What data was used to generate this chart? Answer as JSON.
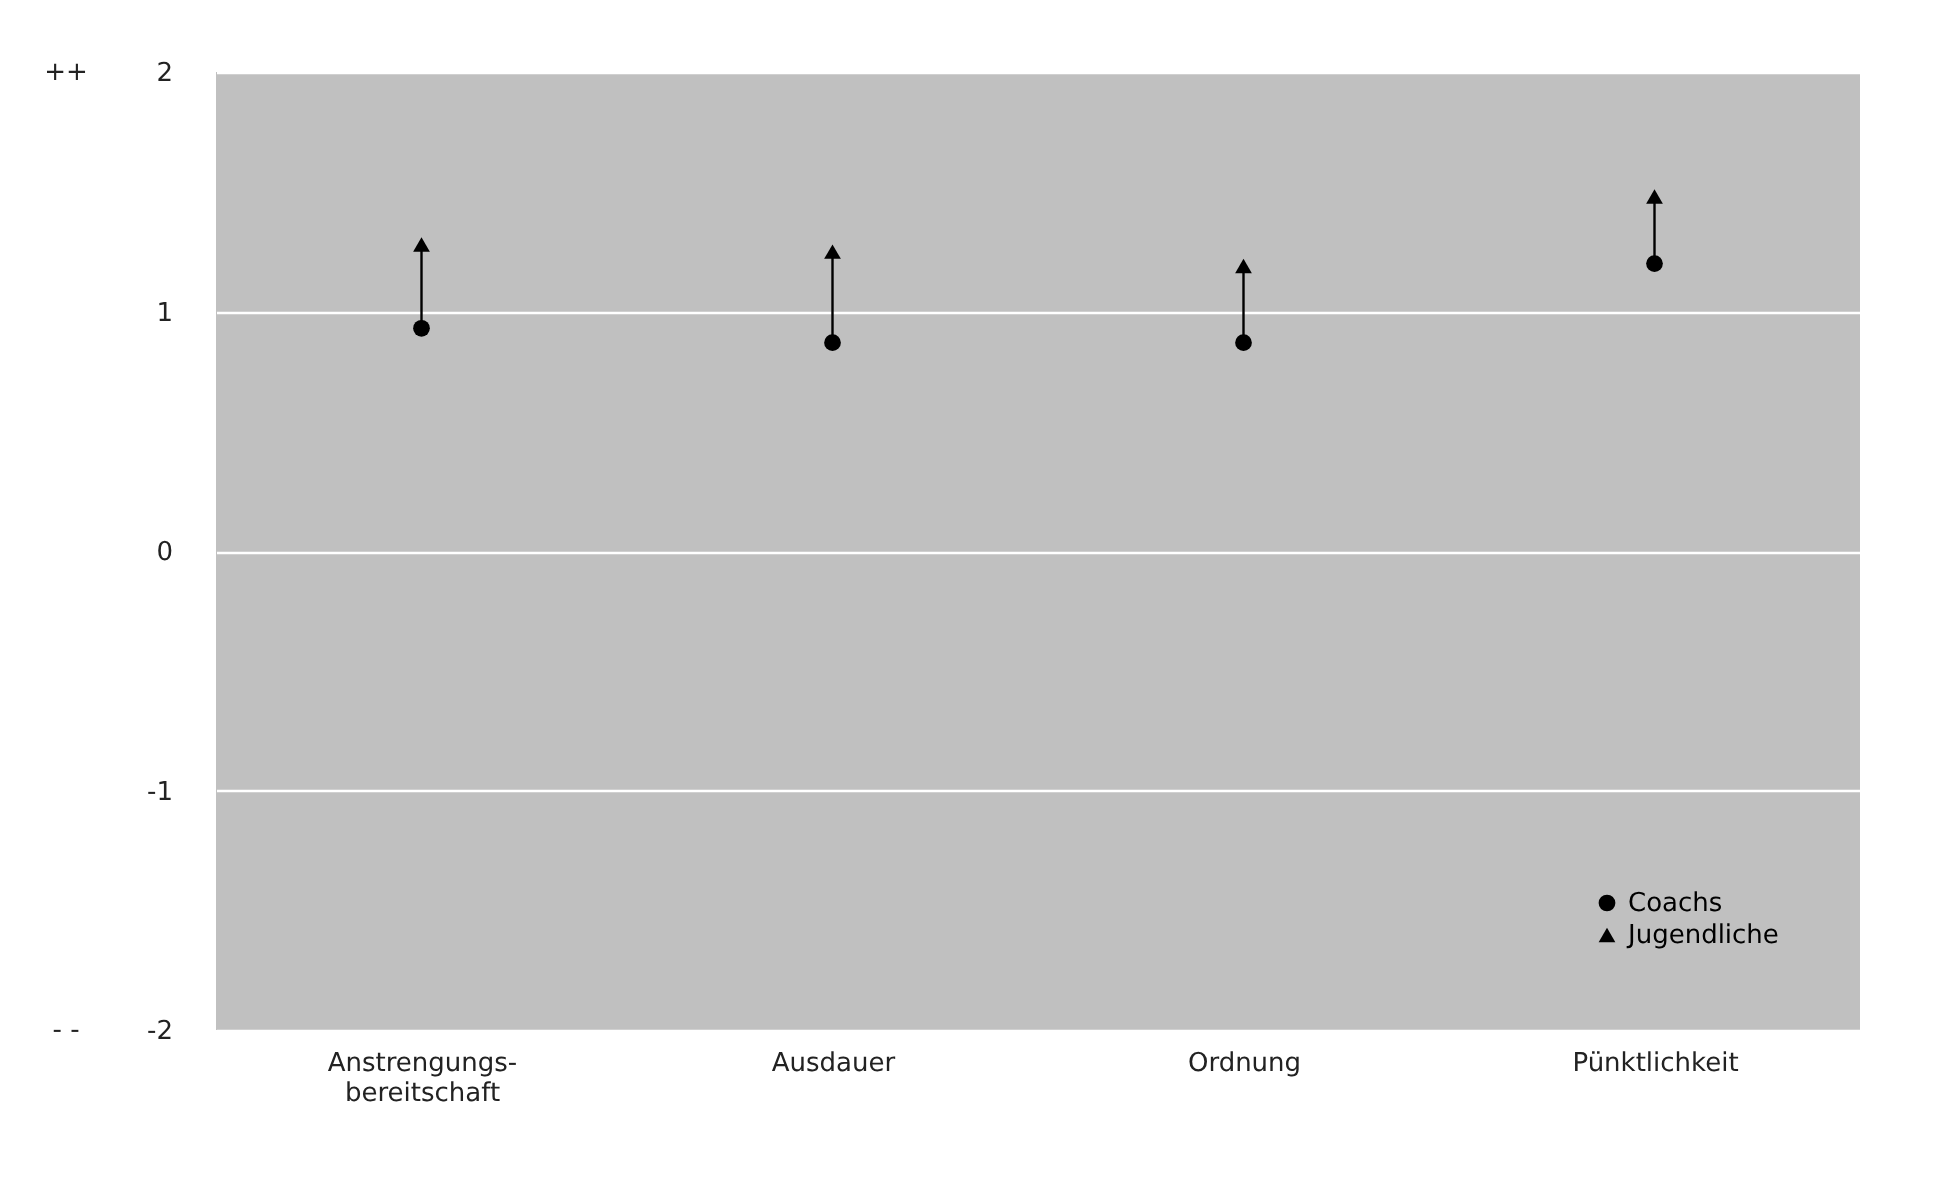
{
  "chart_data": {
    "type": "scatter",
    "categories": [
      "Anstrengungs-\nbereitschaft",
      "Ausdauer",
      "Ordnung",
      "Pünktlichkeit"
    ],
    "series": [
      {
        "name": "Coachs",
        "color": "#000000",
        "marker": "circle",
        "values": [
          0.93,
          0.87,
          0.87,
          1.2
        ]
      },
      {
        "name": "Jugendliche",
        "color": "#000000",
        "marker": "triangle",
        "values": [
          1.28,
          1.25,
          1.19,
          1.48
        ]
      }
    ],
    "ylim": [
      -2,
      2
    ],
    "yticks": [
      -2,
      -1,
      0,
      1,
      2
    ],
    "grid": "y",
    "legend": "bottom right",
    "annotations": [
      "++",
      "- -"
    ]
  }
}
